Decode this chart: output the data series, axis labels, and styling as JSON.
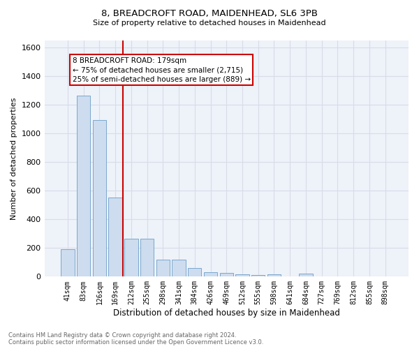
{
  "title1": "8, BREADCROFT ROAD, MAIDENHEAD, SL6 3PB",
  "title2": "Size of property relative to detached houses in Maidenhead",
  "xlabel": "Distribution of detached houses by size in Maidenhead",
  "ylabel": "Number of detached properties",
  "footnote": "Contains HM Land Registry data © Crown copyright and database right 2024.\nContains public sector information licensed under the Open Government Licence v3.0.",
  "categories": [
    "41sqm",
    "83sqm",
    "126sqm",
    "169sqm",
    "212sqm",
    "255sqm",
    "298sqm",
    "341sqm",
    "384sqm",
    "426sqm",
    "469sqm",
    "512sqm",
    "555sqm",
    "598sqm",
    "641sqm",
    "684sqm",
    "727sqm",
    "769sqm",
    "812sqm",
    "855sqm",
    "898sqm"
  ],
  "values": [
    190,
    1265,
    1090,
    550,
    265,
    265,
    120,
    120,
    60,
    30,
    25,
    15,
    10,
    15,
    0,
    20,
    0,
    0,
    0,
    0,
    0
  ],
  "bar_color": "#cddcee",
  "bar_edge_color": "#6b9ec8",
  "annotation_box_text": "8 BREADCROFT ROAD: 179sqm\n← 75% of detached houses are smaller (2,715)\n25% of semi-detached houses are larger (889) →",
  "red_line_x": 3.5,
  "ylim": [
    0,
    1650
  ],
  "yticks": [
    0,
    200,
    400,
    600,
    800,
    1000,
    1200,
    1400,
    1600
  ],
  "background_color": "#eef2f9",
  "grid_color": "#d8dce8",
  "annotation_box_color": "#ffffff",
  "annotation_box_edge_color": "#cc0000",
  "red_line_color": "#cc0000",
  "title1_fontsize": 9.5,
  "title2_fontsize": 8,
  "ylabel_fontsize": 8,
  "xlabel_fontsize": 8.5,
  "tick_fontsize": 7,
  "footnote_fontsize": 6,
  "footnote_color": "#666666"
}
